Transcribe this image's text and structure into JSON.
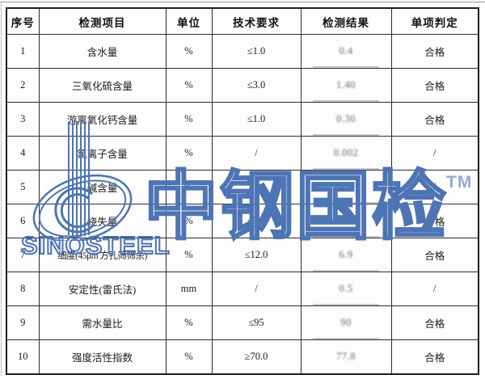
{
  "watermark": {
    "brand_cn": "中钢国检",
    "brand_en": "SINOSTEEL",
    "tm": "TM",
    "color": "#4d74b4"
  },
  "table": {
    "headers": [
      "序号",
      "检测项目",
      "单位",
      "技术要求",
      "检测结果",
      "单项判定"
    ],
    "rows": [
      {
        "no": "1",
        "item": "含水量",
        "unit": "%",
        "requirement": "≤1.0",
        "result": "0.4",
        "judgment": "合格"
      },
      {
        "no": "2",
        "item": "三氧化硫含量",
        "unit": "%",
        "requirement": "≤3.0",
        "result": "1.40",
        "judgment": "合格"
      },
      {
        "no": "3",
        "item": "游离氧化钙含量",
        "unit": "%",
        "requirement": "≤1.0",
        "result": "0.30",
        "judgment": "合格"
      },
      {
        "no": "4",
        "item": "氯离子含量",
        "unit": "%",
        "requirement": "/",
        "result": "0.002",
        "judgment": "/"
      },
      {
        "no": "5",
        "item": "碱含量",
        "unit": "%",
        "requirement": "/",
        "result": "3.1",
        "judgment": "/"
      },
      {
        "no": "6",
        "item": "烧失量",
        "unit": "%",
        "requirement": "≤5.0",
        "result": "0.8",
        "judgment": "合格"
      },
      {
        "no": "7",
        "item": "细度(45μm 方孔筛筛余)",
        "unit": "%",
        "requirement": "≤12.0",
        "result": "6.9",
        "judgment": "合格"
      },
      {
        "no": "8",
        "item": "安定性(雷氏法)",
        "unit": "mm",
        "requirement": "/",
        "result": "0.5",
        "judgment": "/"
      },
      {
        "no": "9",
        "item": "需水量比",
        "unit": "%",
        "requirement": "≤95",
        "result": "90",
        "judgment": "合格"
      },
      {
        "no": "10",
        "item": "强度活性指数",
        "unit": "%",
        "requirement": "≥70.0",
        "result": "77.8",
        "judgment": "合格"
      }
    ]
  }
}
